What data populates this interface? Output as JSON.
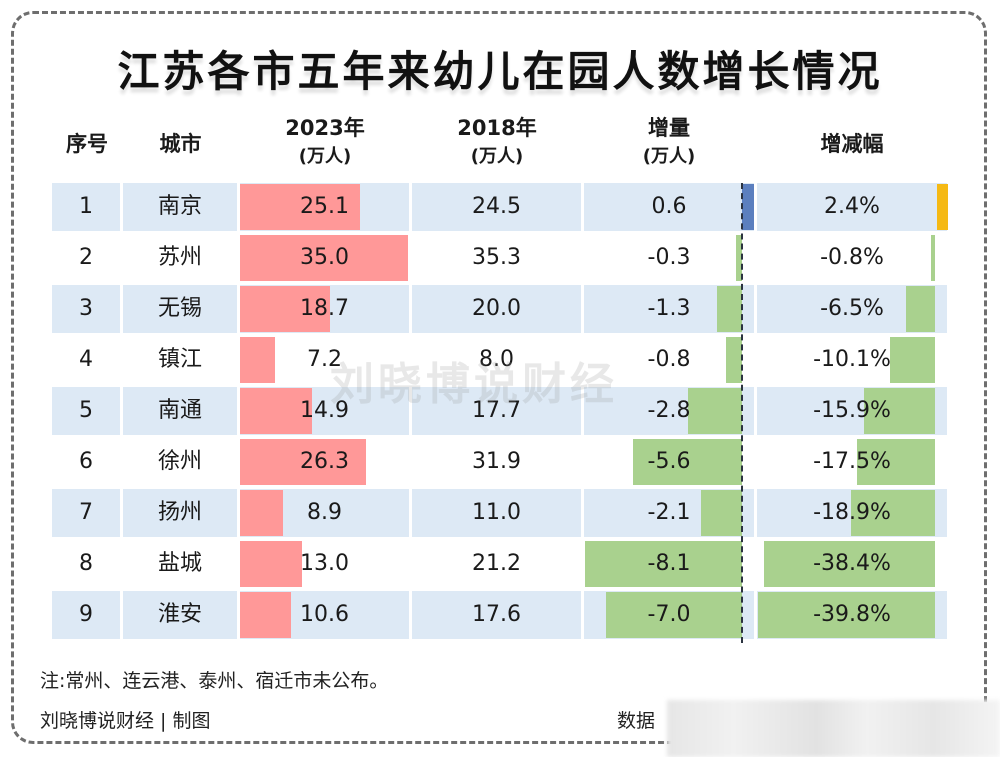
{
  "title": "江苏各市五年来幼儿在园人数增长情况",
  "headers": {
    "index": "序号",
    "city": "城市",
    "y2023": "2023年",
    "y2023_unit": "(万人)",
    "y2018": "2018年",
    "y2018_unit": "(万人)",
    "delta": "增量",
    "delta_unit": "(万人)",
    "pct": "增减幅"
  },
  "watermark": "刘晓博说财经",
  "note": "注:常州、连云港、泰州、宿迁市未公布。",
  "credit": "刘晓博说财经 | 制图",
  "source_label": "数据",
  "colors": {
    "row_alt": "#dde9f5",
    "bar_2023": "#ff9898",
    "bar_negative": "#a9d18e",
    "bar_delta_positive": "#5b7fbf",
    "bar_pct_positive": "#f5b914"
  },
  "chart_data": {
    "type": "table",
    "title": "江苏各市五年来幼儿在园人数增长情况",
    "columns": [
      "序号",
      "城市",
      "2023年(万人)",
      "2018年(万人)",
      "增量(万人)",
      "增减幅"
    ],
    "rows": [
      {
        "index": "1",
        "city": "南京",
        "y2023": 25.1,
        "y2018": 24.5,
        "delta": 0.6,
        "pct": 2.4,
        "y2023_label": "25.1",
        "y2018_label": "24.5",
        "delta_label": "0.6",
        "pct_label": "2.4%"
      },
      {
        "index": "2",
        "city": "苏州",
        "y2023": 35.0,
        "y2018": 35.3,
        "delta": -0.3,
        "pct": -0.8,
        "y2023_label": "35.0",
        "y2018_label": "35.3",
        "delta_label": "-0.3",
        "pct_label": "-0.8%"
      },
      {
        "index": "3",
        "city": "无锡",
        "y2023": 18.7,
        "y2018": 20.0,
        "delta": -1.3,
        "pct": -6.5,
        "y2023_label": "18.7",
        "y2018_label": "20.0",
        "delta_label": "-1.3",
        "pct_label": "-6.5%"
      },
      {
        "index": "4",
        "city": "镇江",
        "y2023": 7.2,
        "y2018": 8.0,
        "delta": -0.8,
        "pct": -10.1,
        "y2023_label": "7.2",
        "y2018_label": "8.0",
        "delta_label": "-0.8",
        "pct_label": "-10.1%"
      },
      {
        "index": "5",
        "city": "南通",
        "y2023": 14.9,
        "y2018": 17.7,
        "delta": -2.8,
        "pct": -15.9,
        "y2023_label": "14.9",
        "y2018_label": "17.7",
        "delta_label": "-2.8",
        "pct_label": "-15.9%"
      },
      {
        "index": "6",
        "city": "徐州",
        "y2023": 26.3,
        "y2018": 31.9,
        "delta": -5.6,
        "pct": -17.5,
        "y2023_label": "26.3",
        "y2018_label": "31.9",
        "delta_label": "-5.6",
        "pct_label": "-17.5%"
      },
      {
        "index": "7",
        "city": "扬州",
        "y2023": 8.9,
        "y2018": 11.0,
        "delta": -2.1,
        "pct": -18.9,
        "y2023_label": "8.9",
        "y2018_label": "11.0",
        "delta_label": "-2.1",
        "pct_label": "-18.9%"
      },
      {
        "index": "8",
        "city": "盐城",
        "y2023": 13.0,
        "y2018": 21.2,
        "delta": -8.1,
        "pct": -38.4,
        "y2023_label": "13.0",
        "y2018_label": "21.2",
        "delta_label": "-8.1",
        "pct_label": "-38.4%"
      },
      {
        "index": "9",
        "city": "淮安",
        "y2023": 10.6,
        "y2018": 17.6,
        "delta": -7.0,
        "pct": -39.8,
        "y2023_label": "10.6",
        "y2018_label": "17.6",
        "delta_label": "-7.0",
        "pct_label": "-39.8%"
      }
    ]
  }
}
